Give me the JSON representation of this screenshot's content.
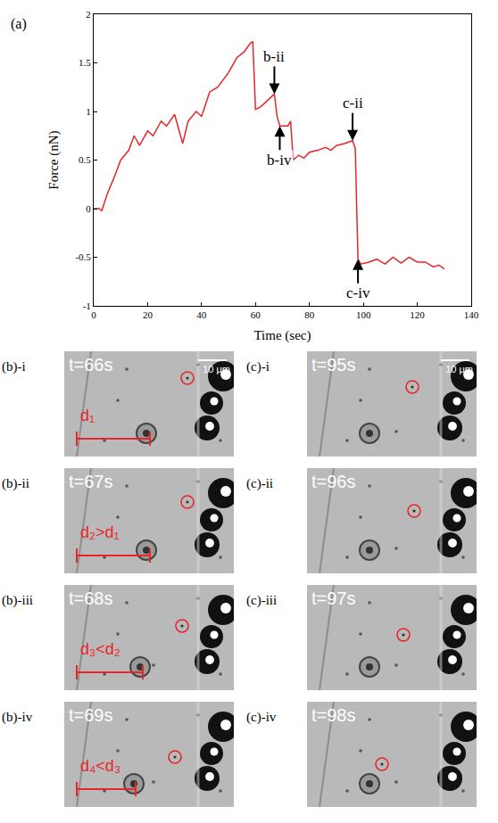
{
  "chart_data": {
    "type": "line",
    "panel_label": "(a)",
    "x_label": "Time (sec)",
    "y_label": "Force (nN)",
    "color": "#e8262a",
    "xlim": [
      0,
      140
    ],
    "ylim": [
      -1,
      2
    ],
    "xticks": [
      0,
      20,
      40,
      60,
      80,
      100,
      120,
      140
    ],
    "yticks": [
      -1,
      -0.5,
      0,
      0.5,
      1,
      1.5,
      2
    ],
    "grid": false,
    "x": [
      0,
      2,
      3,
      5,
      8,
      10,
      13,
      15,
      17,
      20,
      22,
      25,
      27,
      30,
      33,
      35,
      38,
      40,
      43,
      46,
      50,
      53,
      56,
      58,
      59,
      60,
      62,
      64,
      67,
      68,
      69,
      72,
      73,
      74,
      76,
      78,
      80,
      83,
      86,
      88,
      90,
      93,
      96,
      97,
      98,
      99,
      102,
      105,
      108,
      111,
      114,
      117,
      120,
      123,
      126,
      128,
      130
    ],
    "values": [
      0,
      0,
      -0.02,
      0.15,
      0.35,
      0.5,
      0.6,
      0.75,
      0.65,
      0.8,
      0.75,
      0.9,
      0.85,
      0.97,
      0.67,
      0.9,
      1.0,
      0.95,
      1.2,
      1.25,
      1.4,
      1.55,
      1.62,
      1.7,
      1.72,
      1.02,
      1.05,
      1.1,
      1.18,
      0.95,
      0.85,
      0.85,
      0.9,
      0.5,
      0.55,
      0.52,
      0.58,
      0.6,
      0.63,
      0.6,
      0.65,
      0.67,
      0.7,
      0.62,
      -0.52,
      -0.57,
      -0.55,
      -0.52,
      -0.57,
      -0.5,
      -0.56,
      -0.5,
      -0.55,
      -0.55,
      -0.6,
      -0.58,
      -0.62
    ],
    "annotations": [
      {
        "text": "b-ii",
        "x": 67,
        "y": 1.18
      },
      {
        "text": "b-iv",
        "x": 69,
        "y": 0.85
      },
      {
        "text": "c-ii",
        "x": 96,
        "y": 0.7
      },
      {
        "text": "c-iv",
        "x": 98,
        "y": -0.52
      }
    ]
  },
  "panels": [
    {
      "label": "(b)-i",
      "time": "t=66s",
      "scale_bar": "10 μm",
      "distance": "d₁"
    },
    {
      "label": "(b)-ii",
      "time": "t=67s",
      "distance": "d₂>d₁"
    },
    {
      "label": "(b)-iii",
      "time": "t=68s",
      "distance": "d₃<d₂"
    },
    {
      "label": "(b)-iv",
      "time": "t=69s",
      "distance": "d₄<d₃"
    },
    {
      "label": "(c)-i",
      "time": "t=95s",
      "scale_bar": "10 μm"
    },
    {
      "label": "(c)-ii",
      "time": "t=96s"
    },
    {
      "label": "(c)-iii",
      "time": "t=97s"
    },
    {
      "label": "(c)-iv",
      "time": "t=98s"
    }
  ]
}
